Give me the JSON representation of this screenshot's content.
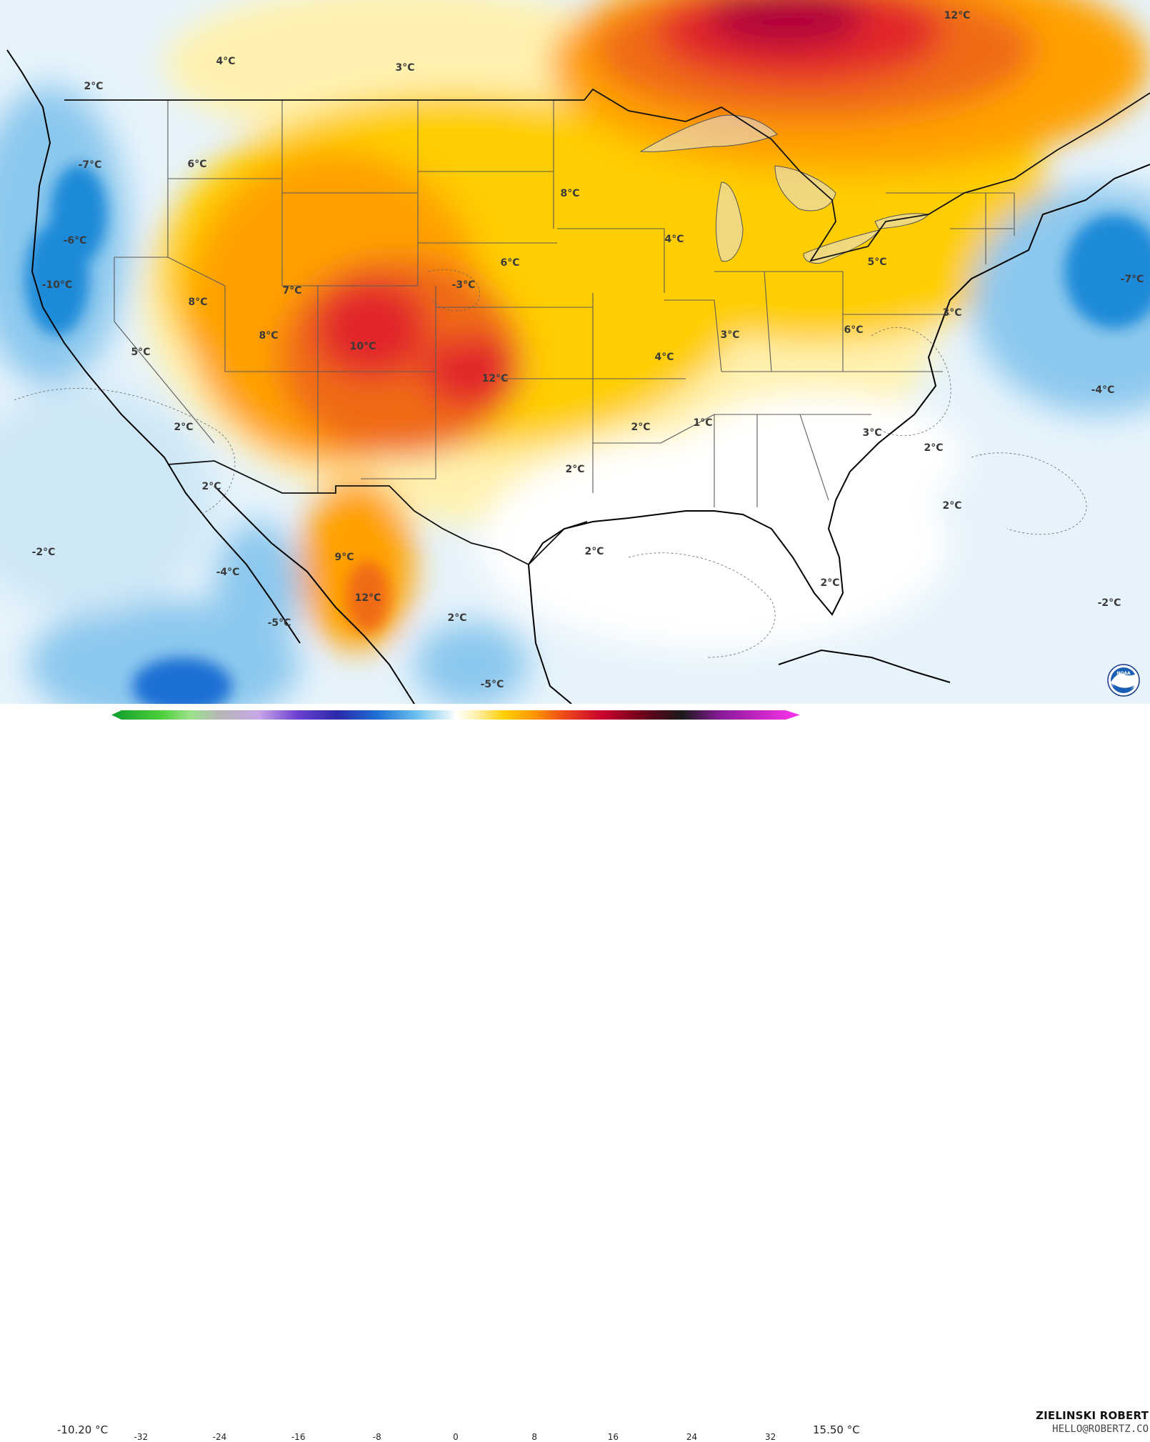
{
  "colors": {
    "ocean": "#e6f3fb",
    "cold_strong": "#1f8ad8",
    "cold": "#8cc8ee",
    "neutral": "#ffffff",
    "warm_light": "#fff2b0",
    "warm": "#ffcd00",
    "warm_mid": "#ffa000",
    "hot": "#f06a14",
    "hotter": "#e2262a",
    "hottest": "#b0003a",
    "coast": "#000000",
    "border": "#555555"
  },
  "map_labels": [
    "4°C",
    "3°C",
    "12°C",
    "2°C",
    "-7°C",
    "6°C",
    "8°C",
    "-6°C",
    "6°C",
    "4°C",
    "-10°C",
    "7°C",
    "8°C",
    "3°C",
    "5°C",
    "-7°C",
    "8°C",
    "10°C",
    "3°C",
    "-3°C",
    "5°C",
    "4°C",
    "12°C",
    "6°C",
    "-4°C",
    "2°C",
    "1°C",
    "2°C",
    "3°C",
    "2°C",
    "2°C",
    "2°C",
    "2°C",
    "-2°C",
    "2°C",
    "-4°C",
    "9°C",
    "2°C",
    "12°C",
    "-5°C",
    "2°C",
    "-5°C",
    "-2°C"
  ],
  "legend": {
    "min_label": "-10.20 °C",
    "max_label": "15.50 °C",
    "ticks": [
      "-32",
      "-24",
      "-16",
      "-8",
      "0",
      "8",
      "16",
      "24",
      "32"
    ],
    "scale_min": -35,
    "scale_max": 35,
    "stops": [
      {
        "v": -35,
        "c": "#0f9d2c"
      },
      {
        "v": -30,
        "c": "#4ccf3a"
      },
      {
        "v": -27,
        "c": "#9be28a"
      },
      {
        "v": -24,
        "c": "#b6b6b6"
      },
      {
        "v": -20,
        "c": "#c7a6e8"
      },
      {
        "v": -16,
        "c": "#6a3fd0"
      },
      {
        "v": -12,
        "c": "#2a2aaa"
      },
      {
        "v": -8,
        "c": "#1e6fd4"
      },
      {
        "v": -4,
        "c": "#6cc0ee"
      },
      {
        "v": -1,
        "c": "#d6eef9"
      },
      {
        "v": 0,
        "c": "#ffffff"
      },
      {
        "v": 2,
        "c": "#fff2b0"
      },
      {
        "v": 5,
        "c": "#ffcd00"
      },
      {
        "v": 8,
        "c": "#ff9600"
      },
      {
        "v": 11,
        "c": "#ee4a1a"
      },
      {
        "v": 15,
        "c": "#c8002e"
      },
      {
        "v": 19,
        "c": "#6e001a"
      },
      {
        "v": 23,
        "c": "#1a1a1a"
      },
      {
        "v": 27,
        "c": "#8a1a9a"
      },
      {
        "v": 35,
        "c": "#ff33ee"
      }
    ]
  },
  "branding": {
    "name": "ZIELINSKI ROBERT",
    "email": "HELLO@ROBERTZ.CO",
    "logo_text": "NOAA"
  }
}
